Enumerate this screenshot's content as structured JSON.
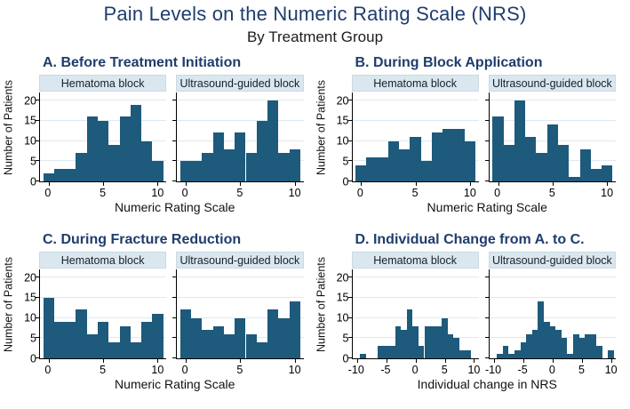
{
  "figure": {
    "title": "Pain Levels on the Numeric Rating Scale (NRS)",
    "subtitle": "By Treatment Group"
  },
  "colors": {
    "bar": "#1d5a7c",
    "heading": "#1f3d6d",
    "panel_band_bg": "#dbe7ee",
    "gridline": "#dde9f2"
  },
  "chart_data": [
    {
      "id": "A",
      "type": "bar",
      "title": "A. Before Treatment Initiation",
      "xlabel": "Numeric Rating Scale",
      "ylabel": "Number of Patients",
      "ylim": [
        0,
        22
      ],
      "yticks": [
        0,
        5,
        10,
        15,
        20
      ],
      "xlim": [
        -0.8,
        10.8
      ],
      "xticks": [
        0,
        5,
        10
      ],
      "bin_width": 1,
      "grid": "horizontal",
      "series": [
        {
          "name": "Hematoma block",
          "x": [
            0,
            1,
            2,
            3,
            4,
            5,
            6,
            7,
            8,
            9,
            10
          ],
          "values": [
            2,
            3,
            3,
            7,
            16,
            15,
            9,
            16,
            19,
            10,
            5
          ]
        },
        {
          "name": "Ultrasound-guided block",
          "x": [
            0,
            1,
            2,
            3,
            4,
            5,
            6,
            7,
            8,
            9,
            10
          ],
          "values": [
            5,
            5,
            7,
            12,
            8,
            12,
            7,
            15,
            20,
            7,
            8
          ]
        }
      ]
    },
    {
      "id": "B",
      "type": "bar",
      "title": "B. During Block Application",
      "xlabel": "Numeric Rating Scale",
      "ylabel": "Number of Patients",
      "ylim": [
        0,
        22
      ],
      "yticks": [
        0,
        5,
        10,
        15,
        20
      ],
      "xlim": [
        -0.8,
        10.8
      ],
      "xticks": [
        0,
        5,
        10
      ],
      "bin_width": 1,
      "grid": "horizontal",
      "series": [
        {
          "name": "Hematoma block",
          "x": [
            0,
            1,
            2,
            3,
            4,
            5,
            6,
            7,
            8,
            9,
            10
          ],
          "values": [
            4,
            6,
            6,
            10,
            8,
            11,
            5,
            12,
            13,
            13,
            10
          ]
        },
        {
          "name": "Ultrasound-guided block",
          "x": [
            0,
            1,
            2,
            3,
            4,
            5,
            6,
            7,
            8,
            9,
            10
          ],
          "values": [
            16,
            9,
            20,
            11,
            7,
            14,
            9,
            1,
            8,
            3,
            4
          ]
        }
      ]
    },
    {
      "id": "C",
      "type": "bar",
      "title": "C. During Fracture Reduction",
      "xlabel": "Numeric Rating Scale",
      "ylabel": "Number of Patients",
      "ylim": [
        0,
        22
      ],
      "yticks": [
        0,
        5,
        10,
        15,
        20
      ],
      "xlim": [
        -0.8,
        10.8
      ],
      "xticks": [
        0,
        5,
        10
      ],
      "bin_width": 1,
      "grid": "horizontal",
      "series": [
        {
          "name": "Hematoma block",
          "x": [
            0,
            1,
            2,
            3,
            4,
            5,
            6,
            7,
            8,
            9,
            10
          ],
          "values": [
            15,
            9,
            9,
            12,
            6,
            9,
            4,
            8,
            4,
            9,
            11
          ]
        },
        {
          "name": "Ultrasound-guided block",
          "x": [
            0,
            1,
            2,
            3,
            4,
            5,
            6,
            7,
            8,
            9,
            10
          ],
          "values": [
            12,
            10,
            7,
            8,
            6,
            10,
            6,
            4,
            12,
            10,
            14
          ]
        }
      ]
    },
    {
      "id": "D",
      "type": "bar",
      "title": "D. Individual Change from A. to C.",
      "xlabel": "Individual change in NRS",
      "ylabel": "Number of Patients",
      "ylim": [
        0,
        22
      ],
      "yticks": [
        0,
        5,
        10,
        15,
        20
      ],
      "xlim": [
        -10.8,
        10.8
      ],
      "xticks": [
        -10,
        -5,
        0,
        5,
        10
      ],
      "bin_width": 1,
      "grid": "horizontal",
      "series": [
        {
          "name": "Hematoma block",
          "x": [
            -10,
            -9,
            -8,
            -7,
            -6,
            -5,
            -4,
            -3,
            -2,
            -1,
            0,
            1,
            2,
            3,
            4,
            5,
            6,
            7,
            8,
            9,
            10
          ],
          "values": [
            0,
            1,
            0,
            0,
            3,
            3,
            3,
            8,
            7,
            12,
            8,
            3,
            8,
            8,
            8,
            10,
            6,
            5,
            2,
            2,
            0
          ]
        },
        {
          "name": "Ultrasound-guided block",
          "x": [
            -10,
            -9,
            -8,
            -7,
            -6,
            -5,
            -4,
            -3,
            -2,
            -1,
            0,
            1,
            2,
            3,
            4,
            5,
            6,
            7,
            8,
            9,
            10
          ],
          "values": [
            0,
            1,
            3,
            1,
            2,
            4,
            6,
            7,
            14,
            9,
            8,
            7,
            5,
            1,
            6,
            5,
            6,
            6,
            3,
            0,
            2
          ]
        }
      ]
    }
  ]
}
